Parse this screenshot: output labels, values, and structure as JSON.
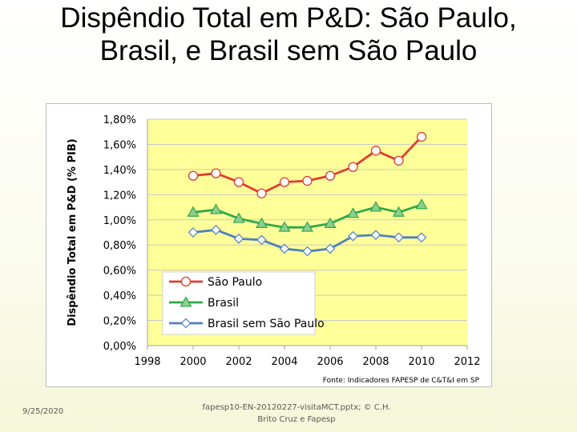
{
  "slide": {
    "title": "Dispêndio Total em P&D: São Paulo, Brasil, e Brasil sem São Paulo",
    "footer_date": "9/25/2020",
    "footer_file": "fapesp10-EN-20120227-visitaMCT.pptx; © C.H. Brito Cruz e Fapesp"
  },
  "chart_data": {
    "type": "line",
    "title": "",
    "xlabel": "",
    "ylabel": "Dispêndio Total em P&D (% PIB)",
    "xlim": [
      1998,
      2012
    ],
    "x_ticks": [
      1998,
      2000,
      2002,
      2004,
      2006,
      2008,
      2010,
      2012
    ],
    "ylim": [
      0,
      1.8
    ],
    "y_ticks": [
      "0,00%",
      "0,20%",
      "0,40%",
      "0,60%",
      "0,80%",
      "1,00%",
      "1,20%",
      "1,40%",
      "1,60%",
      "1,80%"
    ],
    "grid": "horizontal",
    "plot_background": "#ffff99",
    "legend_placement": "bottom-left",
    "source_note": "Fonte: Indicadores FAPESP de C&T&I em SP",
    "x": [
      2000,
      2001,
      2002,
      2003,
      2004,
      2005,
      2006,
      2007,
      2008,
      2009,
      2010
    ],
    "series": [
      {
        "name": "São Paulo",
        "color": "#e03c31",
        "marker": "circle",
        "values": [
          1.35,
          1.37,
          1.3,
          1.21,
          1.3,
          1.31,
          1.35,
          1.42,
          1.55,
          1.47,
          1.66
        ]
      },
      {
        "name": "Brasil",
        "color": "#2da84a",
        "marker": "triangle",
        "values": [
          1.06,
          1.08,
          1.01,
          0.97,
          0.94,
          0.94,
          0.97,
          1.05,
          1.1,
          1.06,
          1.12
        ]
      },
      {
        "name": "Brasil sem São Paulo",
        "color": "#4f7fc0",
        "marker": "diamond",
        "values": [
          0.9,
          0.92,
          0.85,
          0.84,
          0.77,
          0.75,
          0.77,
          0.87,
          0.88,
          0.86,
          0.86
        ]
      }
    ]
  }
}
